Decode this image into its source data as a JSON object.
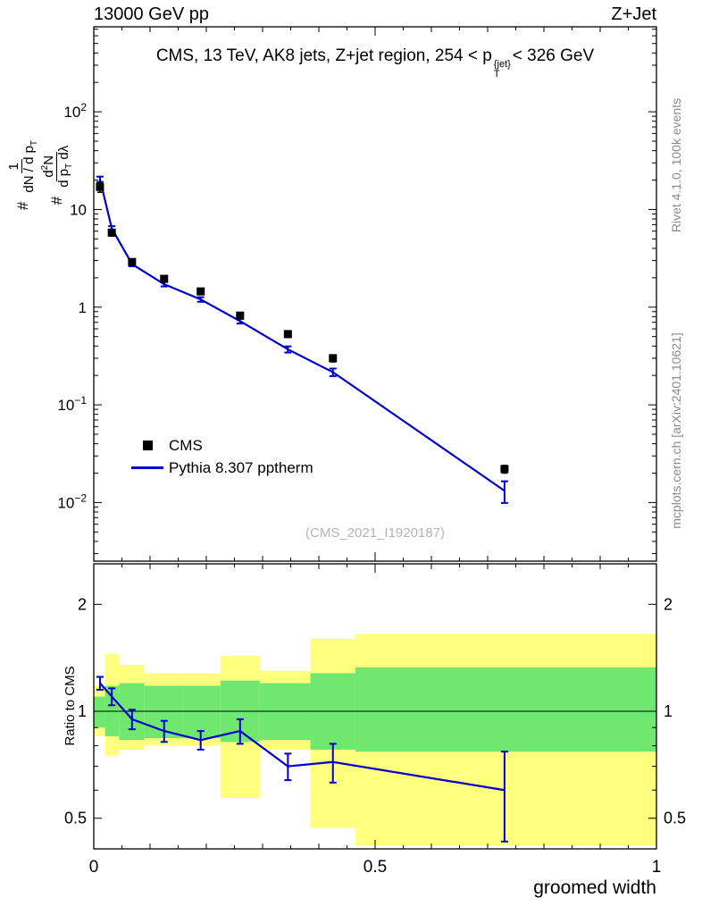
{
  "header": {
    "left": "13000 GeV pp",
    "right": "Z+Jet"
  },
  "title": {
    "part1": "CMS, 13 TeV, AK8 jets, Z+jet region, 254 < p",
    "sup": "{jet}",
    "sub": "T",
    "part2": "< 326 GeV"
  },
  "ylabel_main": {
    "hash1": "#",
    "f1_num": "1",
    "f1_den_pre": "dN / d p",
    "f1_den_sub": "T",
    "hash2": "#",
    "f2_num_pre": "d",
    "f2_num_sup": "2",
    "f2_num_post": "N",
    "f2_den_pre": "d p",
    "f2_den_sub": "T",
    "f2_den_post": " dλ"
  },
  "ylabel_ratio": "Ratio to CMS",
  "xlabel": "groomed width",
  "watermark": "(CMS_2021_I1920187)",
  "side_notes": {
    "top": "Rivet 4.1.0, 100k events",
    "bottom": "mcplots.cern.ch [arXiv:2401.10621]"
  },
  "legend": [
    {
      "label": "CMS",
      "marker": "square",
      "color": "#000000"
    },
    {
      "label": "Pythia 8.307 pptherm",
      "marker": "line",
      "color": "#0000cd"
    }
  ],
  "chart_data": {
    "type": "line",
    "title": "CMS, 13 TeV, AK8 jets, Z+jet region, 254 < pT{jet} < 326 GeV",
    "xlabel": "groomed width",
    "ylabel": "# 1/(dN/dpT) d2N/(dpT dlambda)",
    "ratio_ylabel": "Ratio to CMS",
    "panels": [
      "main log-y spectrum",
      "ratio to CMS with uncertainty bands"
    ],
    "xlim": [
      0,
      1
    ],
    "main_ylog": [
      -2.6,
      2.87
    ],
    "ratio_ylim": [
      0.41,
      2.6
    ],
    "x_major_ticks": [
      0,
      0.5,
      1
    ],
    "x_major_tick_labels": [
      "0",
      "0.5",
      "1"
    ],
    "main_ytick_exponents": [
      2,
      1,
      0,
      -1,
      -2
    ],
    "ratio_yticks": [
      0.5,
      1,
      2
    ],
    "ratio_ytick_labels": [
      "0.5",
      "1",
      "2"
    ],
    "bin_edges": [
      0,
      0.02,
      0.045,
      0.09,
      0.16,
      0.225,
      0.295,
      0.385,
      0.465,
      1.0
    ],
    "x": [
      0.011,
      0.032,
      0.068,
      0.125,
      0.19,
      0.26,
      0.345,
      0.425,
      0.73
    ],
    "cms": {
      "name": "CMS",
      "y": [
        17,
        5.8,
        2.9,
        1.95,
        1.45,
        0.82,
        0.53,
        0.3,
        0.022
      ],
      "yerr": [
        2.0,
        0.45,
        0.2,
        0.13,
        0.1,
        0.055,
        0.04,
        0.025,
        0.002
      ]
    },
    "pythia": {
      "name": "Pythia 8.307 pptherm",
      "y": [
        20.4,
        6.4,
        2.76,
        1.72,
        1.2,
        0.72,
        0.37,
        0.216,
        0.0132
      ],
      "yerr": [
        1.3,
        0.35,
        0.14,
        0.09,
        0.065,
        0.04,
        0.027,
        0.019,
        0.0033
      ]
    },
    "ratio": {
      "y": [
        1.2,
        1.1,
        0.95,
        0.88,
        0.83,
        0.88,
        0.7,
        0.72,
        0.6
      ],
      "yerr": [
        0.05,
        0.06,
        0.06,
        0.06,
        0.05,
        0.07,
        0.06,
        0.09,
        0.17
      ]
    },
    "bands": {
      "outer": {
        "lo": [
          0.85,
          0.75,
          0.78,
          0.8,
          0.8,
          0.57,
          0.78,
          0.47,
          0.42
        ],
        "hi": [
          1.18,
          1.45,
          1.35,
          1.28,
          1.28,
          1.43,
          1.3,
          1.6,
          1.65
        ]
      },
      "inner": {
        "lo": [
          0.9,
          0.85,
          0.83,
          0.84,
          0.84,
          0.82,
          0.83,
          0.78,
          0.77
        ],
        "hi": [
          1.1,
          1.18,
          1.2,
          1.18,
          1.18,
          1.22,
          1.2,
          1.28,
          1.33
        ]
      }
    },
    "colors": {
      "line": "#0000cd",
      "marker": "#000000",
      "band_outer": "#ffff7d",
      "band_inner": "#70e870",
      "unity_line": "#000000"
    }
  }
}
